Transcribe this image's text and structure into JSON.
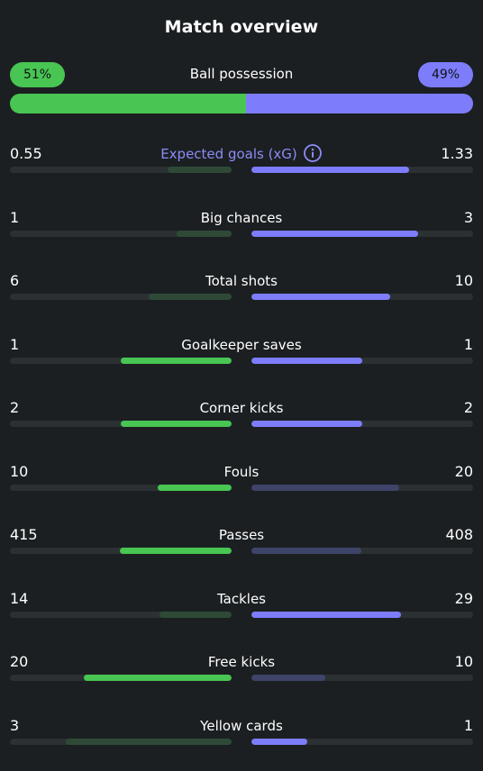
{
  "header": {
    "title": "Match overview"
  },
  "possession": {
    "label": "Ball possession",
    "home_text": "51%",
    "away_text": "49%",
    "home_value": 51,
    "away_value": 49
  },
  "colors": {
    "home_strong": "#48c552",
    "home_weak": "#2e4a37",
    "away_strong": "#7d7dfb",
    "away_weak": "#3e4467",
    "accent_label": "#8c8cf6"
  },
  "stats": [
    {
      "label": "Expected goals (xG)",
      "home": "0.55",
      "away": "1.33",
      "home_fraction": 0.29,
      "away_fraction": 0.71,
      "home_highlight": false,
      "away_highlight": true,
      "accent": true,
      "info_icon": "info-icon"
    },
    {
      "label": "Big chances",
      "home": "1",
      "away": "3",
      "home_fraction": 0.25,
      "away_fraction": 0.75,
      "home_highlight": false,
      "away_highlight": true
    },
    {
      "label": "Total shots",
      "home": "6",
      "away": "10",
      "home_fraction": 0.375,
      "away_fraction": 0.625,
      "home_highlight": false,
      "away_highlight": true
    },
    {
      "label": "Goalkeeper saves",
      "home": "1",
      "away": "1",
      "home_fraction": 0.5,
      "away_fraction": 0.5,
      "home_highlight": true,
      "away_highlight": true
    },
    {
      "label": "Corner kicks",
      "home": "2",
      "away": "2",
      "home_fraction": 0.5,
      "away_fraction": 0.5,
      "home_highlight": true,
      "away_highlight": true
    },
    {
      "label": "Fouls",
      "home": "10",
      "away": "20",
      "home_fraction": 0.333,
      "away_fraction": 0.667,
      "home_highlight": true,
      "away_highlight": false
    },
    {
      "label": "Passes",
      "home": "415",
      "away": "408",
      "home_fraction": 0.504,
      "away_fraction": 0.496,
      "home_highlight": true,
      "away_highlight": false
    },
    {
      "label": "Tackles",
      "home": "14",
      "away": "29",
      "home_fraction": 0.326,
      "away_fraction": 0.674,
      "home_highlight": false,
      "away_highlight": true
    },
    {
      "label": "Free kicks",
      "home": "20",
      "away": "10",
      "home_fraction": 0.667,
      "away_fraction": 0.333,
      "home_highlight": true,
      "away_highlight": false
    },
    {
      "label": "Yellow cards",
      "home": "3",
      "away": "1",
      "home_fraction": 0.75,
      "away_fraction": 0.25,
      "home_highlight": false,
      "away_highlight": true
    }
  ]
}
